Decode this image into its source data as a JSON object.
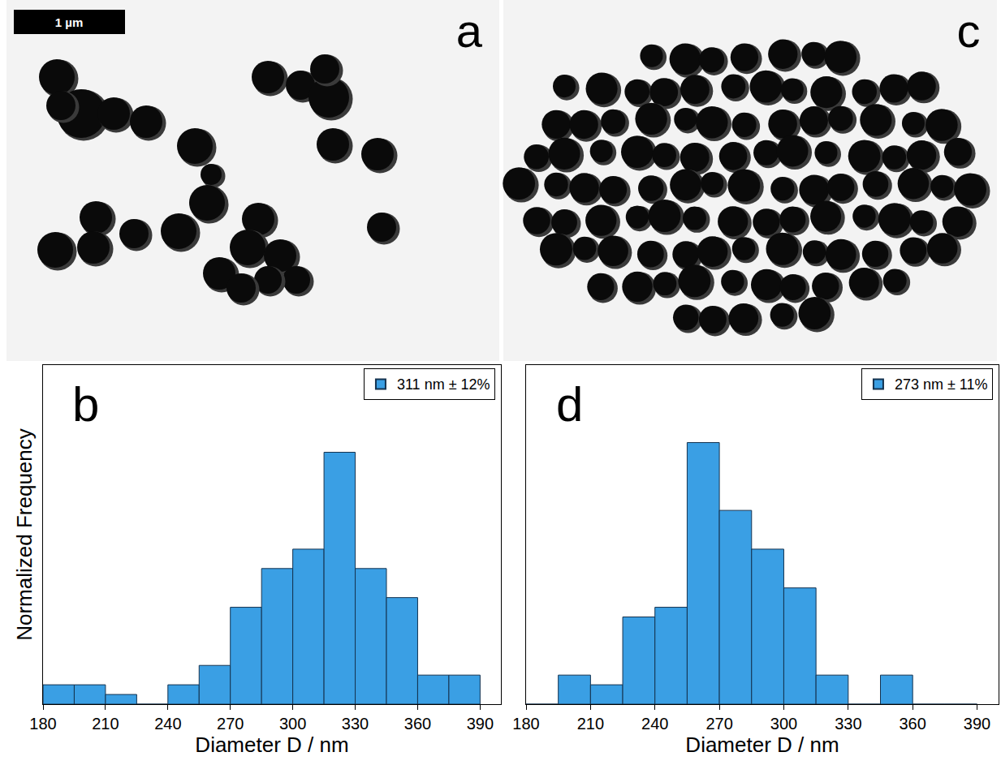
{
  "images": [
    {
      "panel_label": "a",
      "scale_bar": "1 µm"
    },
    {
      "panel_label": "c"
    }
  ],
  "chart_data": [
    {
      "type": "histogram",
      "panel_label": "b",
      "x_label": "Diameter D / nm",
      "y_label": "Normalized Frequency",
      "bins": [
        180,
        195,
        210,
        225,
        240,
        255,
        270,
        285,
        300,
        315,
        330,
        345,
        360,
        375,
        390
      ],
      "series": [
        {
          "name": "311 nm ± 12%",
          "color": "#3a9fe4",
          "values": [
            2,
            2,
            1,
            0,
            2,
            4,
            10,
            14,
            16,
            26,
            14,
            11,
            3,
            3
          ]
        }
      ],
      "xlim": [
        180,
        400
      ],
      "xticks": [
        180,
        210,
        240,
        270,
        300,
        330,
        360,
        390
      ],
      "ylim": [
        0,
        35
      ],
      "tick_labels": "x",
      "legend": "top right"
    },
    {
      "type": "histogram",
      "panel_label": "d",
      "x_label": "Diameter D / nm",
      "bins": [
        180,
        195,
        210,
        225,
        240,
        255,
        270,
        285,
        300,
        315,
        330,
        345,
        360,
        375,
        390
      ],
      "series": [
        {
          "name": "273 nm ± 11%",
          "color": "#3a9fe4",
          "values": [
            0,
            3,
            2,
            9,
            10,
            27,
            20,
            16,
            12,
            3,
            0,
            3,
            0,
            0
          ]
        }
      ],
      "xlim": [
        180,
        400
      ],
      "xticks": [
        180,
        210,
        240,
        270,
        300,
        330,
        360,
        390
      ],
      "ylim": [
        0,
        35
      ],
      "tick_labels": "x",
      "legend": "top right"
    }
  ]
}
